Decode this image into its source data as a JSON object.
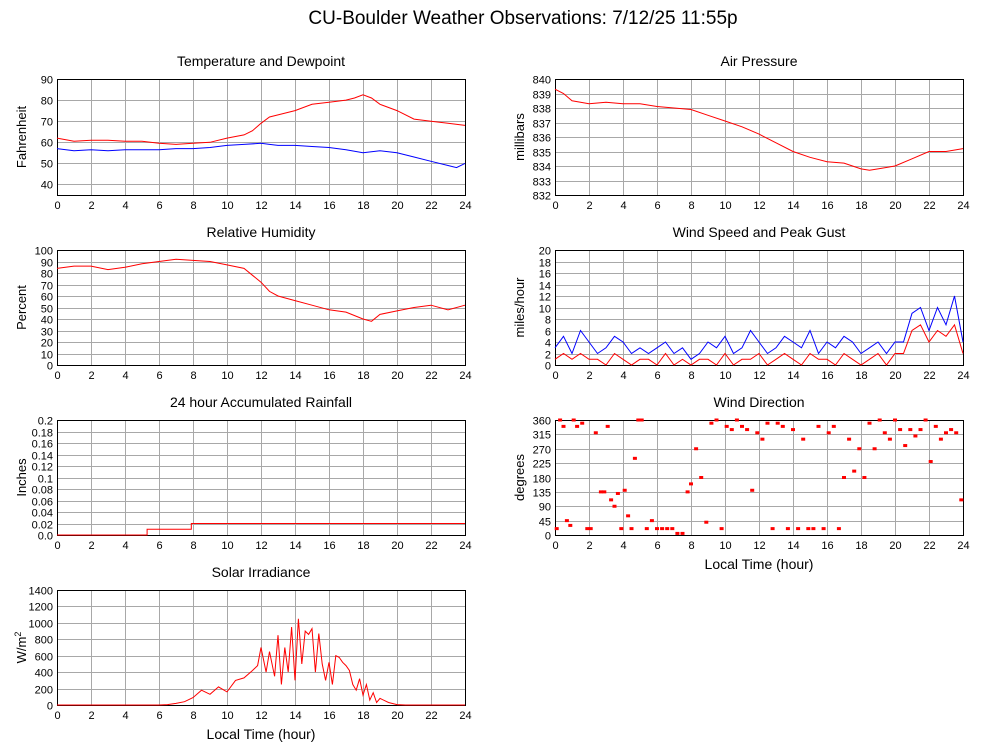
{
  "page": {
    "title": "CU-Boulder Weather Observations: 7/12/25 11:55p"
  },
  "colors": {
    "red": "#ff0000",
    "blue": "#0000ff",
    "grid": "#a8a8a8"
  },
  "chart_data": [
    {
      "id": "temperature",
      "type": "line",
      "title": "Temperature and Dewpoint",
      "xlabel": "",
      "ylabel": "Fahrenheit",
      "xlim": [
        0,
        24
      ],
      "ylim": [
        35,
        90
      ],
      "xticks": [
        0,
        2,
        4,
        6,
        8,
        10,
        12,
        14,
        16,
        18,
        20,
        22,
        24
      ],
      "yticks": [
        40,
        50,
        60,
        70,
        80,
        90
      ],
      "grid": true,
      "series": [
        {
          "color": "#ff0000",
          "x": [
            0,
            1,
            2,
            3,
            4,
            5,
            6,
            7,
            8,
            9,
            10,
            11,
            11.5,
            12,
            12.5,
            13,
            14,
            15,
            16,
            17,
            17.5,
            18,
            18.5,
            19,
            20,
            21,
            22,
            23,
            24
          ],
          "y": [
            62,
            60.5,
            61,
            61,
            60.5,
            60.5,
            59.5,
            59,
            59.5,
            60,
            62,
            63.5,
            65.5,
            69,
            72,
            73,
            75,
            78,
            79,
            80,
            81,
            82.5,
            81,
            78,
            75,
            71,
            70,
            69,
            68
          ]
        },
        {
          "color": "#0000ff",
          "x": [
            0,
            1,
            2,
            3,
            4,
            5,
            6,
            7,
            8,
            9,
            10,
            11,
            12,
            12.5,
            13,
            14,
            15,
            16,
            17,
            18,
            19,
            20,
            21,
            22,
            23,
            23.5,
            24
          ],
          "y": [
            57,
            56,
            56.5,
            56,
            56.5,
            56.5,
            56.5,
            57,
            57,
            57.5,
            58.5,
            59,
            59.5,
            59,
            58.5,
            58.5,
            58,
            57.5,
            56.5,
            55,
            56,
            55,
            53,
            51,
            49,
            48,
            50
          ]
        }
      ]
    },
    {
      "id": "pressure",
      "type": "line",
      "title": "Air Pressure",
      "xlabel": "",
      "ylabel": "millibars",
      "xlim": [
        0,
        24
      ],
      "ylim": [
        832,
        840
      ],
      "xticks": [
        0,
        2,
        4,
        6,
        8,
        10,
        12,
        14,
        16,
        18,
        20,
        22,
        24
      ],
      "yticks": [
        832,
        833,
        834,
        835,
        836,
        837,
        838,
        839,
        840
      ],
      "grid": true,
      "series": [
        {
          "color": "#ff0000",
          "x": [
            0,
            0.5,
            1,
            1.5,
            2,
            3,
            4,
            5,
            6,
            7,
            8,
            9,
            10,
            11,
            12,
            13,
            14,
            15,
            16,
            17,
            18,
            18.5,
            19,
            20,
            21,
            22,
            23,
            24
          ],
          "y": [
            839.3,
            839,
            838.5,
            838.4,
            838.3,
            838.4,
            838.3,
            838.3,
            838.1,
            838,
            837.9,
            837.5,
            837.1,
            836.7,
            836.2,
            835.6,
            835,
            834.6,
            834.3,
            834.2,
            833.8,
            833.7,
            833.8,
            834,
            834.5,
            835,
            835,
            835.2
          ]
        }
      ]
    },
    {
      "id": "humidity",
      "type": "line",
      "title": "Relative Humidity",
      "xlabel": "",
      "ylabel": "Percent",
      "xlim": [
        0,
        24
      ],
      "ylim": [
        0,
        100
      ],
      "xticks": [
        0,
        2,
        4,
        6,
        8,
        10,
        12,
        14,
        16,
        18,
        20,
        22,
        24
      ],
      "yticks": [
        0,
        10,
        20,
        30,
        40,
        50,
        60,
        70,
        80,
        90,
        100
      ],
      "grid": true,
      "series": [
        {
          "color": "#ff0000",
          "x": [
            0,
            1,
            2,
            3,
            4,
            5,
            6,
            7,
            8,
            9,
            10,
            11,
            11.5,
            12,
            12.5,
            13,
            14,
            15,
            16,
            17,
            18,
            18.5,
            19,
            20,
            21,
            22,
            23,
            24
          ],
          "y": [
            84,
            86,
            86,
            83,
            85,
            88,
            90,
            92,
            91,
            90,
            87,
            84,
            78,
            72,
            64,
            60,
            56,
            52,
            48,
            46,
            40,
            38,
            44,
            47,
            50,
            52,
            48,
            52
          ]
        }
      ]
    },
    {
      "id": "wind-speed",
      "type": "line",
      "title": "Wind Speed and Peak Gust",
      "xlabel": "",
      "ylabel": "miles/hour",
      "xlim": [
        0,
        24
      ],
      "ylim": [
        0,
        20
      ],
      "xticks": [
        0,
        2,
        4,
        6,
        8,
        10,
        12,
        14,
        16,
        18,
        20,
        22,
        24
      ],
      "yticks": [
        0,
        2,
        4,
        6,
        8,
        10,
        12,
        14,
        16,
        18,
        20
      ],
      "grid": true,
      "series": [
        {
          "color": "#0000ff",
          "x": [
            0,
            0.5,
            1,
            1.5,
            2,
            2.5,
            3,
            3.5,
            4,
            4.5,
            5,
            5.5,
            6,
            6.5,
            7,
            7.5,
            8,
            8.5,
            9,
            9.5,
            10,
            10.5,
            11,
            11.5,
            12,
            12.5,
            13,
            13.5,
            14,
            14.5,
            15,
            15.5,
            16,
            16.5,
            17,
            17.5,
            18,
            18.5,
            19,
            19.5,
            20,
            20.5,
            21,
            21.5,
            22,
            22.5,
            23,
            23.5,
            24
          ],
          "y": [
            3,
            5,
            2,
            6,
            4,
            2,
            3,
            5,
            4,
            2,
            3,
            2,
            3,
            4,
            2,
            3,
            1,
            2,
            4,
            3,
            5,
            2,
            3,
            6,
            4,
            2,
            3,
            5,
            4,
            3,
            6,
            2,
            4,
            3,
            5,
            4,
            2,
            3,
            4,
            2,
            4,
            4,
            9,
            10,
            6,
            10,
            7,
            12,
            4
          ]
        },
        {
          "color": "#ff0000",
          "x": [
            0,
            0.5,
            1,
            1.5,
            2,
            2.5,
            3,
            3.5,
            4,
            4.5,
            5,
            5.5,
            6,
            6.5,
            7,
            7.5,
            8,
            8.5,
            9,
            9.5,
            10,
            10.5,
            11,
            11.5,
            12,
            12.5,
            13,
            13.5,
            14,
            14.5,
            15,
            15.5,
            16,
            16.5,
            17,
            17.5,
            18,
            18.5,
            19,
            19.5,
            20,
            20.5,
            21,
            21.5,
            22,
            22.5,
            23,
            23.5,
            24
          ],
          "y": [
            1,
            2,
            1,
            2,
            1,
            1,
            0,
            2,
            1,
            0,
            1,
            1,
            0,
            2,
            0,
            1,
            0,
            1,
            1,
            0,
            2,
            0,
            1,
            1,
            2,
            0,
            1,
            2,
            1,
            0,
            2,
            1,
            1,
            0,
            2,
            1,
            0,
            1,
            2,
            0,
            2,
            2,
            6,
            7,
            4,
            6,
            5,
            7,
            2
          ]
        }
      ]
    },
    {
      "id": "rainfall",
      "type": "line",
      "title": "24 hour Accumulated Rainfall",
      "xlabel": "",
      "ylabel": "Inches",
      "xlim": [
        0,
        24
      ],
      "ylim": [
        0,
        0.2
      ],
      "xticks": [
        0,
        2,
        4,
        6,
        8,
        10,
        12,
        14,
        16,
        18,
        20,
        22,
        24
      ],
      "yticks": [
        "0.0",
        "0.02",
        "0.04",
        "0.06",
        "0.08",
        "0.1",
        "0.12",
        "0.14",
        "0.16",
        "0.18",
        "0.2"
      ],
      "grid": true,
      "series": [
        {
          "color": "#ff0000",
          "x": [
            0,
            5.3,
            5.3,
            7.9,
            7.9,
            24
          ],
          "y": [
            0,
            0,
            0.01,
            0.01,
            0.02,
            0.02
          ]
        }
      ]
    },
    {
      "id": "wind-direction",
      "type": "scatter",
      "title": "Wind Direction",
      "xlabel": "Local Time (hour)",
      "ylabel": "degrees",
      "xlim": [
        0,
        24
      ],
      "ylim": [
        0,
        360
      ],
      "xticks": [
        0,
        2,
        4,
        6,
        8,
        10,
        12,
        14,
        16,
        18,
        20,
        22,
        24
      ],
      "yticks": [
        0,
        45,
        90,
        135,
        180,
        225,
        270,
        315,
        360
      ],
      "grid": true,
      "series": [
        {
          "color": "#ff0000",
          "x": [
            0.1,
            0.3,
            0.5,
            0.7,
            0.9,
            1.1,
            1.3,
            1.6,
            1.9,
            2.1,
            2.4,
            2.7,
            2.9,
            3.1,
            3.3,
            3.5,
            3.7,
            3.9,
            4.1,
            4.3,
            4.5,
            4.7,
            4.9,
            5.1,
            5.4,
            5.7,
            6.0,
            6.3,
            6.6,
            6.9,
            7.2,
            7.5,
            7.8,
            8.0,
            8.3,
            8.6,
            8.9,
            9.2,
            9.5,
            9.8,
            10.1,
            10.4,
            10.7,
            11.0,
            11.3,
            11.6,
            11.9,
            12.2,
            12.5,
            12.8,
            13.1,
            13.4,
            13.7,
            14.0,
            14.3,
            14.6,
            14.9,
            15.2,
            15.5,
            15.8,
            16.1,
            16.4,
            16.7,
            17.0,
            17.3,
            17.6,
            17.9,
            18.2,
            18.5,
            18.8,
            19.1,
            19.4,
            19.7,
            20.0,
            20.3,
            20.6,
            20.9,
            21.2,
            21.5,
            21.8,
            22.1,
            22.4,
            22.7,
            23.0,
            23.3,
            23.6,
            23.9
          ],
          "y": [
            20,
            360,
            340,
            45,
            30,
            360,
            340,
            350,
            20,
            20,
            320,
            135,
            135,
            340,
            110,
            90,
            130,
            20,
            140,
            60,
            20,
            240,
            360,
            360,
            20,
            45,
            20,
            20,
            20,
            20,
            5,
            5,
            135,
            160,
            270,
            180,
            40,
            350,
            360,
            20,
            340,
            330,
            360,
            340,
            330,
            140,
            320,
            300,
            350,
            20,
            350,
            340,
            20,
            330,
            20,
            300,
            20,
            20,
            340,
            20,
            320,
            340,
            20,
            180,
            300,
            200,
            270,
            180,
            350,
            270,
            360,
            320,
            300,
            360,
            330,
            280,
            330,
            310,
            330,
            360,
            230,
            340,
            300,
            320,
            330,
            320,
            110
          ]
        }
      ]
    },
    {
      "id": "solar",
      "type": "line",
      "title": "Solar Irradiance",
      "xlabel": "Local Time (hour)",
      "ylabel": "W/m",
      "ylabel_sup": "2",
      "xlim": [
        0,
        24
      ],
      "ylim": [
        0,
        1400
      ],
      "xticks": [
        0,
        2,
        4,
        6,
        8,
        10,
        12,
        14,
        16,
        18,
        20,
        22,
        24
      ],
      "yticks": [
        0,
        200,
        400,
        600,
        800,
        1000,
        1200,
        1400
      ],
      "grid": true,
      "series": [
        {
          "color": "#ff0000",
          "x": [
            0,
            6.0,
            6.5,
            7,
            7.5,
            8,
            8.5,
            9,
            9.5,
            10,
            10.5,
            11,
            11.5,
            11.8,
            12,
            12.3,
            12.5,
            12.8,
            13.0,
            13.2,
            13.4,
            13.6,
            13.8,
            14.0,
            14.2,
            14.4,
            14.6,
            14.8,
            15.0,
            15.2,
            15.4,
            15.6,
            15.8,
            16.0,
            16.2,
            16.4,
            16.6,
            16.8,
            17.0,
            17.2,
            17.4,
            17.6,
            17.8,
            18.0,
            18.2,
            18.4,
            18.6,
            18.8,
            19.0,
            19.5,
            20.0,
            20.5,
            24
          ],
          "y": [
            0,
            0,
            5,
            20,
            40,
            90,
            180,
            130,
            220,
            160,
            300,
            330,
            420,
            480,
            700,
            400,
            650,
            350,
            850,
            250,
            700,
            400,
            950,
            300,
            1050,
            500,
            900,
            860,
            930,
            400,
            870,
            500,
            300,
            520,
            250,
            600,
            580,
            520,
            480,
            420,
            250,
            180,
            320,
            120,
            250,
            60,
            150,
            30,
            80,
            30,
            5,
            0,
            0
          ]
        }
      ]
    }
  ]
}
